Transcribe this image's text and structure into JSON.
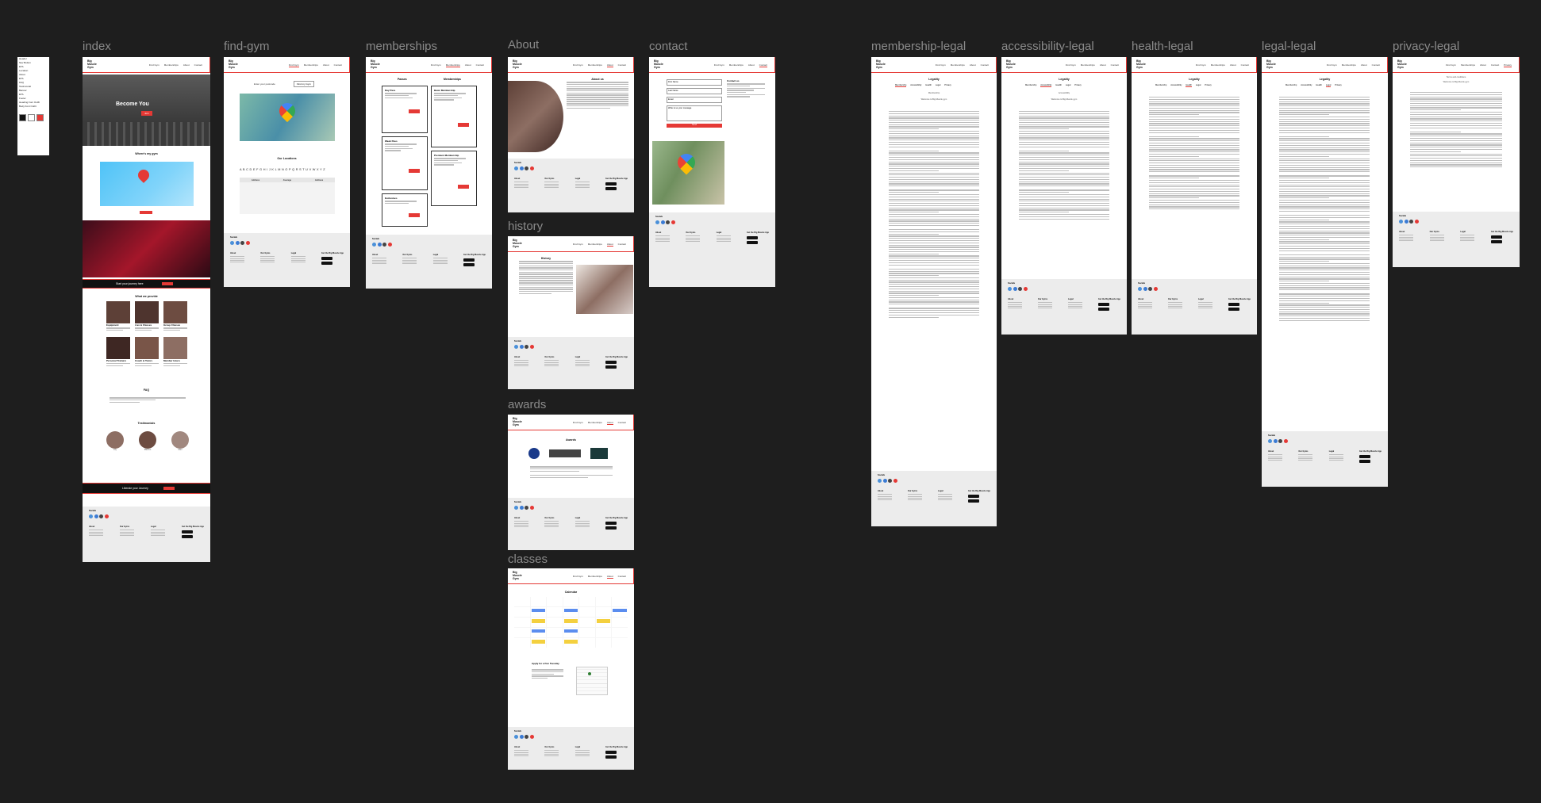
{
  "canvas": {
    "background": "#1e1e1e",
    "accent": "#e53935",
    "label_color": "#8a8a8a"
  },
  "style_guide": {
    "items": [
      "Header",
      "Nav Button",
      "ETA",
      "Location",
      "About",
      "ETA",
      "FAQ",
      "Testimonial",
      "Banner",
      "ETA",
      "Footer",
      "Heading Font Outfit",
      "Body Font Outfit"
    ],
    "swatches": [
      "#111111",
      "#ffffff",
      "#e53935"
    ]
  },
  "frames": {
    "index": "index",
    "find_gym": "find-gym",
    "memberships": "memberships",
    "about": "About",
    "contact": "contact",
    "history": "history",
    "awards": "awards",
    "classes": "classes",
    "membership_legal": "membership-legal",
    "accessibility_legal": "accessibility-legal",
    "health_legal": "health-legal",
    "legal_legal": "legal-legal",
    "privacy_legal": "privacy-legal"
  },
  "site": {
    "brand": "Big Muscle Gym",
    "nav": [
      "Find Gym",
      "Memberships",
      "About",
      "Contact"
    ],
    "legal_nav": [
      "Membership",
      "Accessibility",
      "Health",
      "Legal",
      "Privacy"
    ],
    "footer": {
      "social_title": "Socials",
      "about_title": "About",
      "gym_title": "Our Gyms",
      "legal_title": "Legal",
      "app_title": "Get the Big Muscle App"
    },
    "social_colors": [
      "#4a90d9",
      "#3b7bd4",
      "#444444",
      "#e53935"
    ]
  },
  "index": {
    "hero_title": "Become You",
    "cta": "Join",
    "find_title": "Where's my gym",
    "banner": "Start your journey here",
    "offer_title": "What we provide",
    "offers": [
      "Equipment",
      "Live & Classes",
      "Group Classes",
      "Personal Trainers",
      "Coach & Tutors",
      "Member Hours"
    ],
    "faq_title": "FAQ",
    "testimonials_title": "Testimonials",
    "testimonial_names": [
      "Lily",
      "Marcus",
      "Alex"
    ],
    "bottom_banner": "Liberate your Journey"
  },
  "find_gym": {
    "search_hint": "Enter your postcode",
    "search_btn": "Find my Gym",
    "locations_title": "Our Locations",
    "alphabet": "A B C D E F G H I J K L M N O P Q R S T U V W X Y Z",
    "table_headers": [
      "Address",
      "Average",
      "Address"
    ]
  },
  "memberships": {
    "cols": [
      "Passes",
      "Memberships"
    ],
    "plans": [
      "Day Pass",
      "Basic Membership",
      "Week Pass",
      "Premium Membership",
      "Exclusives"
    ],
    "buy": "Buy"
  },
  "about": {
    "title": "About us"
  },
  "contact": {
    "fields": [
      "First Name",
      "Last Name",
      "Email",
      "Write to us your message"
    ],
    "send": "Send",
    "side_title": "Contact us"
  },
  "history": {
    "title": "History"
  },
  "awards": {
    "title": "Awards"
  },
  "classes": {
    "title": "Calendar",
    "apply_title": "Apply for a Fun Tuesday",
    "event_colors": [
      "#5b8def",
      "#f4d03f"
    ]
  },
  "legal": {
    "membership_title": "Legality",
    "membership_sub": "Membership",
    "membership_welcome": "Welcome to Big Muscle gym",
    "accessibility_title": "Legality",
    "accessibility_sub": "Accessibility",
    "accessibility_welcome": "Welcome to Big Muscle gym",
    "health_title": "Legality",
    "legal_title": "Legality",
    "privacy_title": "Terms and conditions",
    "privacy_welcome": "Welcome to Big Muscle gym"
  }
}
